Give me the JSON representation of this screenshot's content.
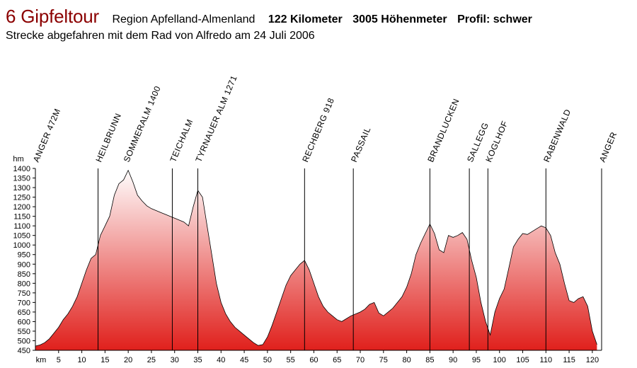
{
  "header": {
    "title": "6 Gipfeltour",
    "region": "Region Apfelland-Almenland",
    "distance": "122 Kilometer",
    "elevation_gain": "3005 Höhenmeter",
    "profile": "Profil: schwer",
    "subtitle": "Strecke abgefahren mit dem Rad von Alfredo am 24 Juli 2006"
  },
  "colors": {
    "title": "#8b0000",
    "fill_top": "#ffffff",
    "fill_bottom": "#e0201c",
    "outline": "#000000"
  },
  "chart_data": {
    "type": "area",
    "title": "6 Gipfeltour",
    "xlabel": "km",
    "ylabel": "hm",
    "xlim": [
      0,
      122
    ],
    "ylim": [
      450,
      1400
    ],
    "xticks": [
      5,
      10,
      15,
      20,
      25,
      30,
      35,
      40,
      45,
      50,
      55,
      60,
      65,
      70,
      75,
      80,
      85,
      90,
      95,
      100,
      105,
      110,
      115,
      120
    ],
    "yticks": [
      450,
      500,
      550,
      600,
      650,
      700,
      750,
      800,
      850,
      900,
      950,
      1000,
      1050,
      1100,
      1150,
      1200,
      1250,
      1300,
      1350,
      1400
    ],
    "grid": false,
    "series": [
      {
        "x": [
          0,
          1,
          2,
          3,
          4,
          5,
          6,
          7,
          8,
          9,
          10,
          11,
          12,
          13,
          14,
          15,
          16,
          17,
          18,
          19,
          20,
          21,
          22,
          23,
          24,
          25,
          26,
          27,
          28,
          29,
          30,
          31,
          32,
          33,
          34,
          35,
          36,
          37,
          38,
          39,
          40,
          41,
          42,
          43,
          44,
          45,
          46,
          47,
          48,
          49,
          50,
          51,
          52,
          53,
          54,
          55,
          56,
          57,
          58,
          59,
          60,
          61,
          62,
          63,
          64,
          65,
          66,
          67,
          68,
          69,
          70,
          71,
          72,
          73,
          74,
          75,
          76,
          77,
          78,
          79,
          80,
          81,
          82,
          83,
          84,
          85,
          86,
          87,
          88,
          89,
          90,
          91,
          92,
          93,
          94,
          95,
          96,
          97,
          98,
          99,
          100,
          101,
          102,
          103,
          104,
          105,
          106,
          107,
          108,
          109,
          110,
          111,
          112,
          113,
          114,
          115,
          116,
          117,
          118,
          119,
          120,
          121
        ],
        "y": [
          472,
          478,
          490,
          510,
          540,
          570,
          610,
          640,
          680,
          730,
          800,
          870,
          930,
          950,
          1050,
          1100,
          1150,
          1260,
          1320,
          1340,
          1390,
          1330,
          1260,
          1230,
          1205,
          1190,
          1180,
          1170,
          1160,
          1150,
          1140,
          1130,
          1120,
          1100,
          1200,
          1285,
          1250,
          1100,
          950,
          800,
          700,
          640,
          600,
          570,
          550,
          530,
          510,
          490,
          475,
          480,
          520,
          580,
          650,
          720,
          790,
          840,
          870,
          900,
          920,
          870,
          800,
          730,
          680,
          650,
          630,
          610,
          600,
          615,
          630,
          640,
          650,
          665,
          690,
          700,
          645,
          630,
          650,
          670,
          700,
          730,
          780,
          850,
          950,
          1010,
          1060,
          1110,
          1060,
          975,
          960,
          1050,
          1040,
          1050,
          1065,
          1030,
          920,
          830,
          700,
          600,
          530,
          650,
          720,
          770,
          880,
          990,
          1030,
          1060,
          1055,
          1070,
          1085,
          1100,
          1090,
          1050,
          960,
          900,
          800,
          710,
          700,
          720,
          730,
          680,
          550,
          480
        ]
      }
    ],
    "waypoints": [
      {
        "km": 0,
        "label": "ANGER 472M",
        "line": false
      },
      {
        "km": 13.5,
        "label": "HEILBRUNN",
        "line": true
      },
      {
        "km": 19.5,
        "label": "SOMMERALM 1400",
        "line": false
      },
      {
        "km": 29.5,
        "label": "TEICHALM",
        "line": true
      },
      {
        "km": 35,
        "label": "TYRNAUER ALM 1271",
        "line": true
      },
      {
        "km": 58,
        "label": "RECHBERG 918",
        "line": true
      },
      {
        "km": 68.5,
        "label": "PASSAIL",
        "line": true
      },
      {
        "km": 85,
        "label": "BRANDLUCKEN",
        "line": true
      },
      {
        "km": 93.5,
        "label": "SALLEGG",
        "line": true
      },
      {
        "km": 97.5,
        "label": "KOGLHOF",
        "line": true
      },
      {
        "km": 110,
        "label": "RABENWALD",
        "line": true
      },
      {
        "km": 122,
        "label": "ANGER",
        "line": true
      }
    ]
  }
}
